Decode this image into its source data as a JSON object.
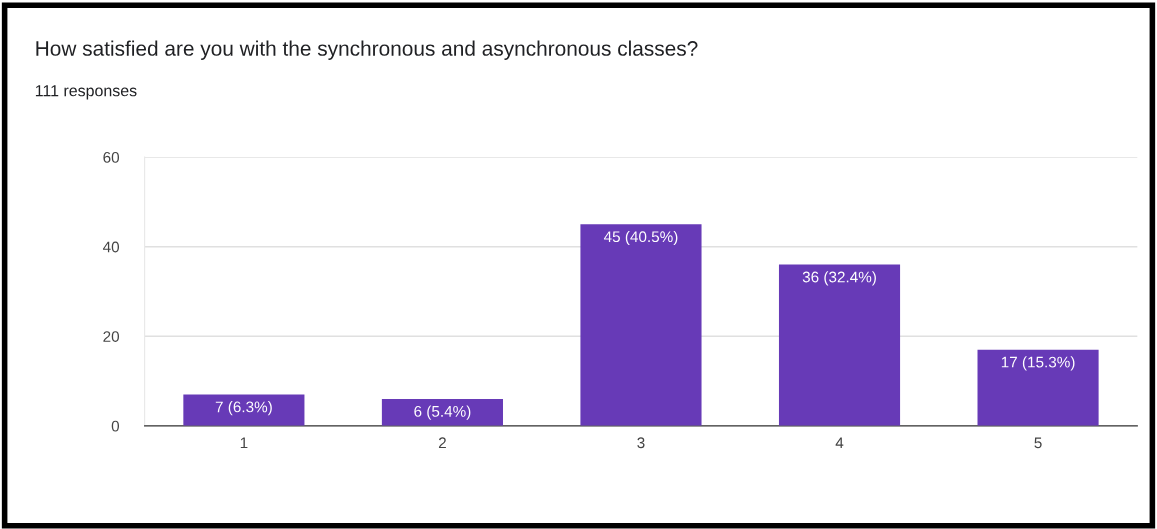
{
  "chart_data": {
    "type": "bar",
    "title": "How satisfied are you with the synchronous and asynchronous classes?",
    "subtitle": "111 responses",
    "categories": [
      "1",
      "2",
      "3",
      "4",
      "5"
    ],
    "values": [
      7,
      6,
      45,
      36,
      17
    ],
    "value_labels": [
      "7 (6.3%)",
      "6 (5.4%)",
      "45 (40.5%)",
      "36 (32.4%)",
      "17 (15.3%)"
    ],
    "color": "#673ab7",
    "ylim": [
      0,
      60
    ],
    "yticks": [
      0,
      20,
      40,
      60
    ],
    "grid": "y",
    "legend": false
  }
}
